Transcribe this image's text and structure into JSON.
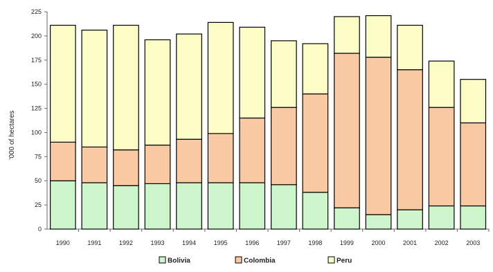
{
  "chart_data": {
    "type": "bar",
    "stacked": true,
    "ylabel": "'000 of hectares",
    "ylim": [
      0,
      225
    ],
    "yticks": [
      0,
      25,
      50,
      75,
      100,
      125,
      150,
      175,
      200,
      225
    ],
    "grid": false,
    "legend_position": "bottom",
    "categories": [
      "1990",
      "1991",
      "1992",
      "1993",
      "1994",
      "1995",
      "1996",
      "1997",
      "1998",
      "1999",
      "2000",
      "2001",
      "2002",
      "2003"
    ],
    "series": [
      {
        "name": "Bolivia",
        "color": "#ccf5cc",
        "values": [
          50,
          48,
          45,
          47,
          48,
          48,
          48,
          46,
          38,
          22,
          15,
          20,
          24,
          24
        ]
      },
      {
        "name": "Colombia",
        "color": "#f8c9a2",
        "values": [
          40,
          37,
          37,
          40,
          45,
          51,
          67,
          80,
          102,
          160,
          163,
          145,
          102,
          86
        ]
      },
      {
        "name": "Peru",
        "color": "#fcfcc6",
        "values": [
          121,
          121,
          129,
          109,
          109,
          115,
          94,
          69,
          52,
          38,
          43,
          46,
          48,
          45
        ]
      }
    ]
  }
}
